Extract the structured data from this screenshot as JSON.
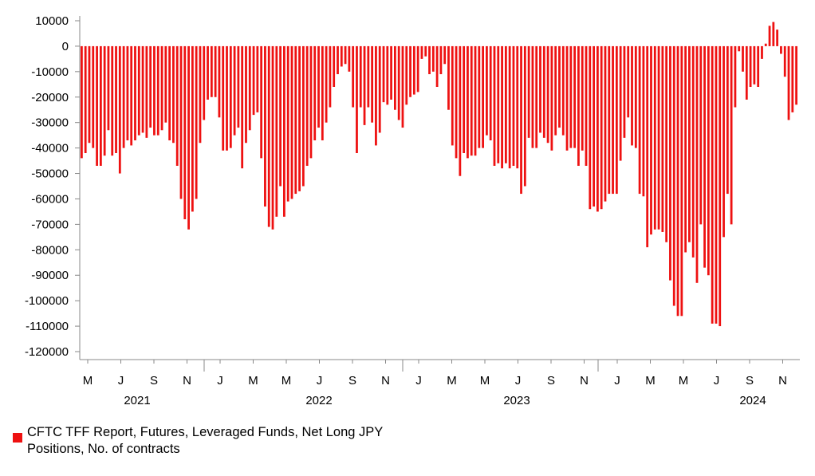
{
  "chart_data": {
    "type": "bar",
    "title": "",
    "xlabel": "",
    "ylabel": "",
    "ylim": [
      -120000,
      10000
    ],
    "yticks": [
      10000,
      0,
      -10000,
      -20000,
      -30000,
      -40000,
      -50000,
      -60000,
      -70000,
      -80000,
      -90000,
      -100000,
      -110000,
      -120000
    ],
    "month_ticks": [
      "M",
      "J",
      "S",
      "N",
      "J",
      "M",
      "M",
      "J",
      "S",
      "N",
      "J",
      "M",
      "M",
      "J",
      "S",
      "N",
      "J",
      "M",
      "M",
      "J",
      "S",
      "N"
    ],
    "year_labels": [
      "2021",
      "2022",
      "2023",
      "2024"
    ],
    "bar_color": "#ee1111",
    "grid": false,
    "legend_position": "bottom-left",
    "series": [
      {
        "name": "CFTC TFF Report, Futures, Leveraged Funds, Net Long JPY Positions, No. of contracts",
        "values": [
          -44000,
          -42000,
          -38000,
          -40000,
          -47000,
          -47000,
          -43000,
          -33000,
          -43000,
          -42000,
          -50000,
          -40000,
          -37000,
          -39000,
          -37000,
          -35000,
          -34000,
          -36000,
          -32000,
          -35000,
          -35000,
          -33000,
          -30000,
          -37000,
          -38000,
          -47000,
          -60000,
          -68000,
          -72000,
          -65000,
          -60000,
          -38000,
          -29000,
          -21000,
          -20000,
          -20000,
          -28000,
          -41000,
          -41000,
          -40000,
          -35000,
          -32000,
          -48000,
          -38000,
          -33000,
          -27000,
          -26000,
          -44000,
          -63000,
          -71000,
          -72000,
          -67000,
          -55000,
          -67000,
          -61000,
          -60000,
          -58000,
          -57000,
          -55000,
          -47000,
          -44000,
          -37000,
          -32000,
          -37000,
          -30000,
          -24000,
          -16000,
          -11000,
          -8000,
          -7000,
          -10000,
          -24000,
          -42000,
          -24000,
          -31000,
          -24000,
          -30000,
          -39000,
          -34000,
          -22000,
          -23000,
          -21000,
          -25000,
          -29000,
          -32000,
          -23000,
          -20000,
          -19000,
          -18000,
          -5000,
          -4000,
          -11000,
          -10000,
          -16000,
          -11000,
          -7000,
          -25000,
          -39000,
          -44000,
          -51000,
          -42000,
          -44000,
          -43000,
          -43000,
          -40000,
          -40000,
          -35000,
          -37000,
          -47000,
          -46000,
          -48000,
          -46000,
          -48000,
          -47000,
          -48000,
          -58000,
          -55000,
          -36000,
          -40000,
          -40000,
          -34000,
          -36000,
          -38000,
          -41000,
          -35000,
          -32000,
          -35000,
          -41000,
          -40000,
          -40000,
          -47000,
          -41000,
          -47000,
          -64000,
          -63000,
          -65000,
          -64000,
          -61000,
          -58000,
          -58000,
          -58000,
          -45000,
          -36000,
          -28000,
          -39000,
          -40000,
          -58000,
          -59000,
          -79000,
          -74000,
          -72000,
          -72000,
          -73000,
          -77000,
          -92000,
          -102000,
          -106000,
          -106000,
          -81000,
          -77000,
          -83000,
          -93000,
          -70000,
          -87000,
          -90000,
          -109000,
          -109000,
          -110000,
          -75000,
          -58000,
          -70000,
          -24000,
          -2000,
          -10000,
          -21000,
          -16000,
          -15000,
          -16000,
          -5000,
          1000,
          8000,
          9500,
          6500,
          -3000,
          -12000,
          -29000,
          -26000,
          -23000
        ]
      }
    ]
  }
}
